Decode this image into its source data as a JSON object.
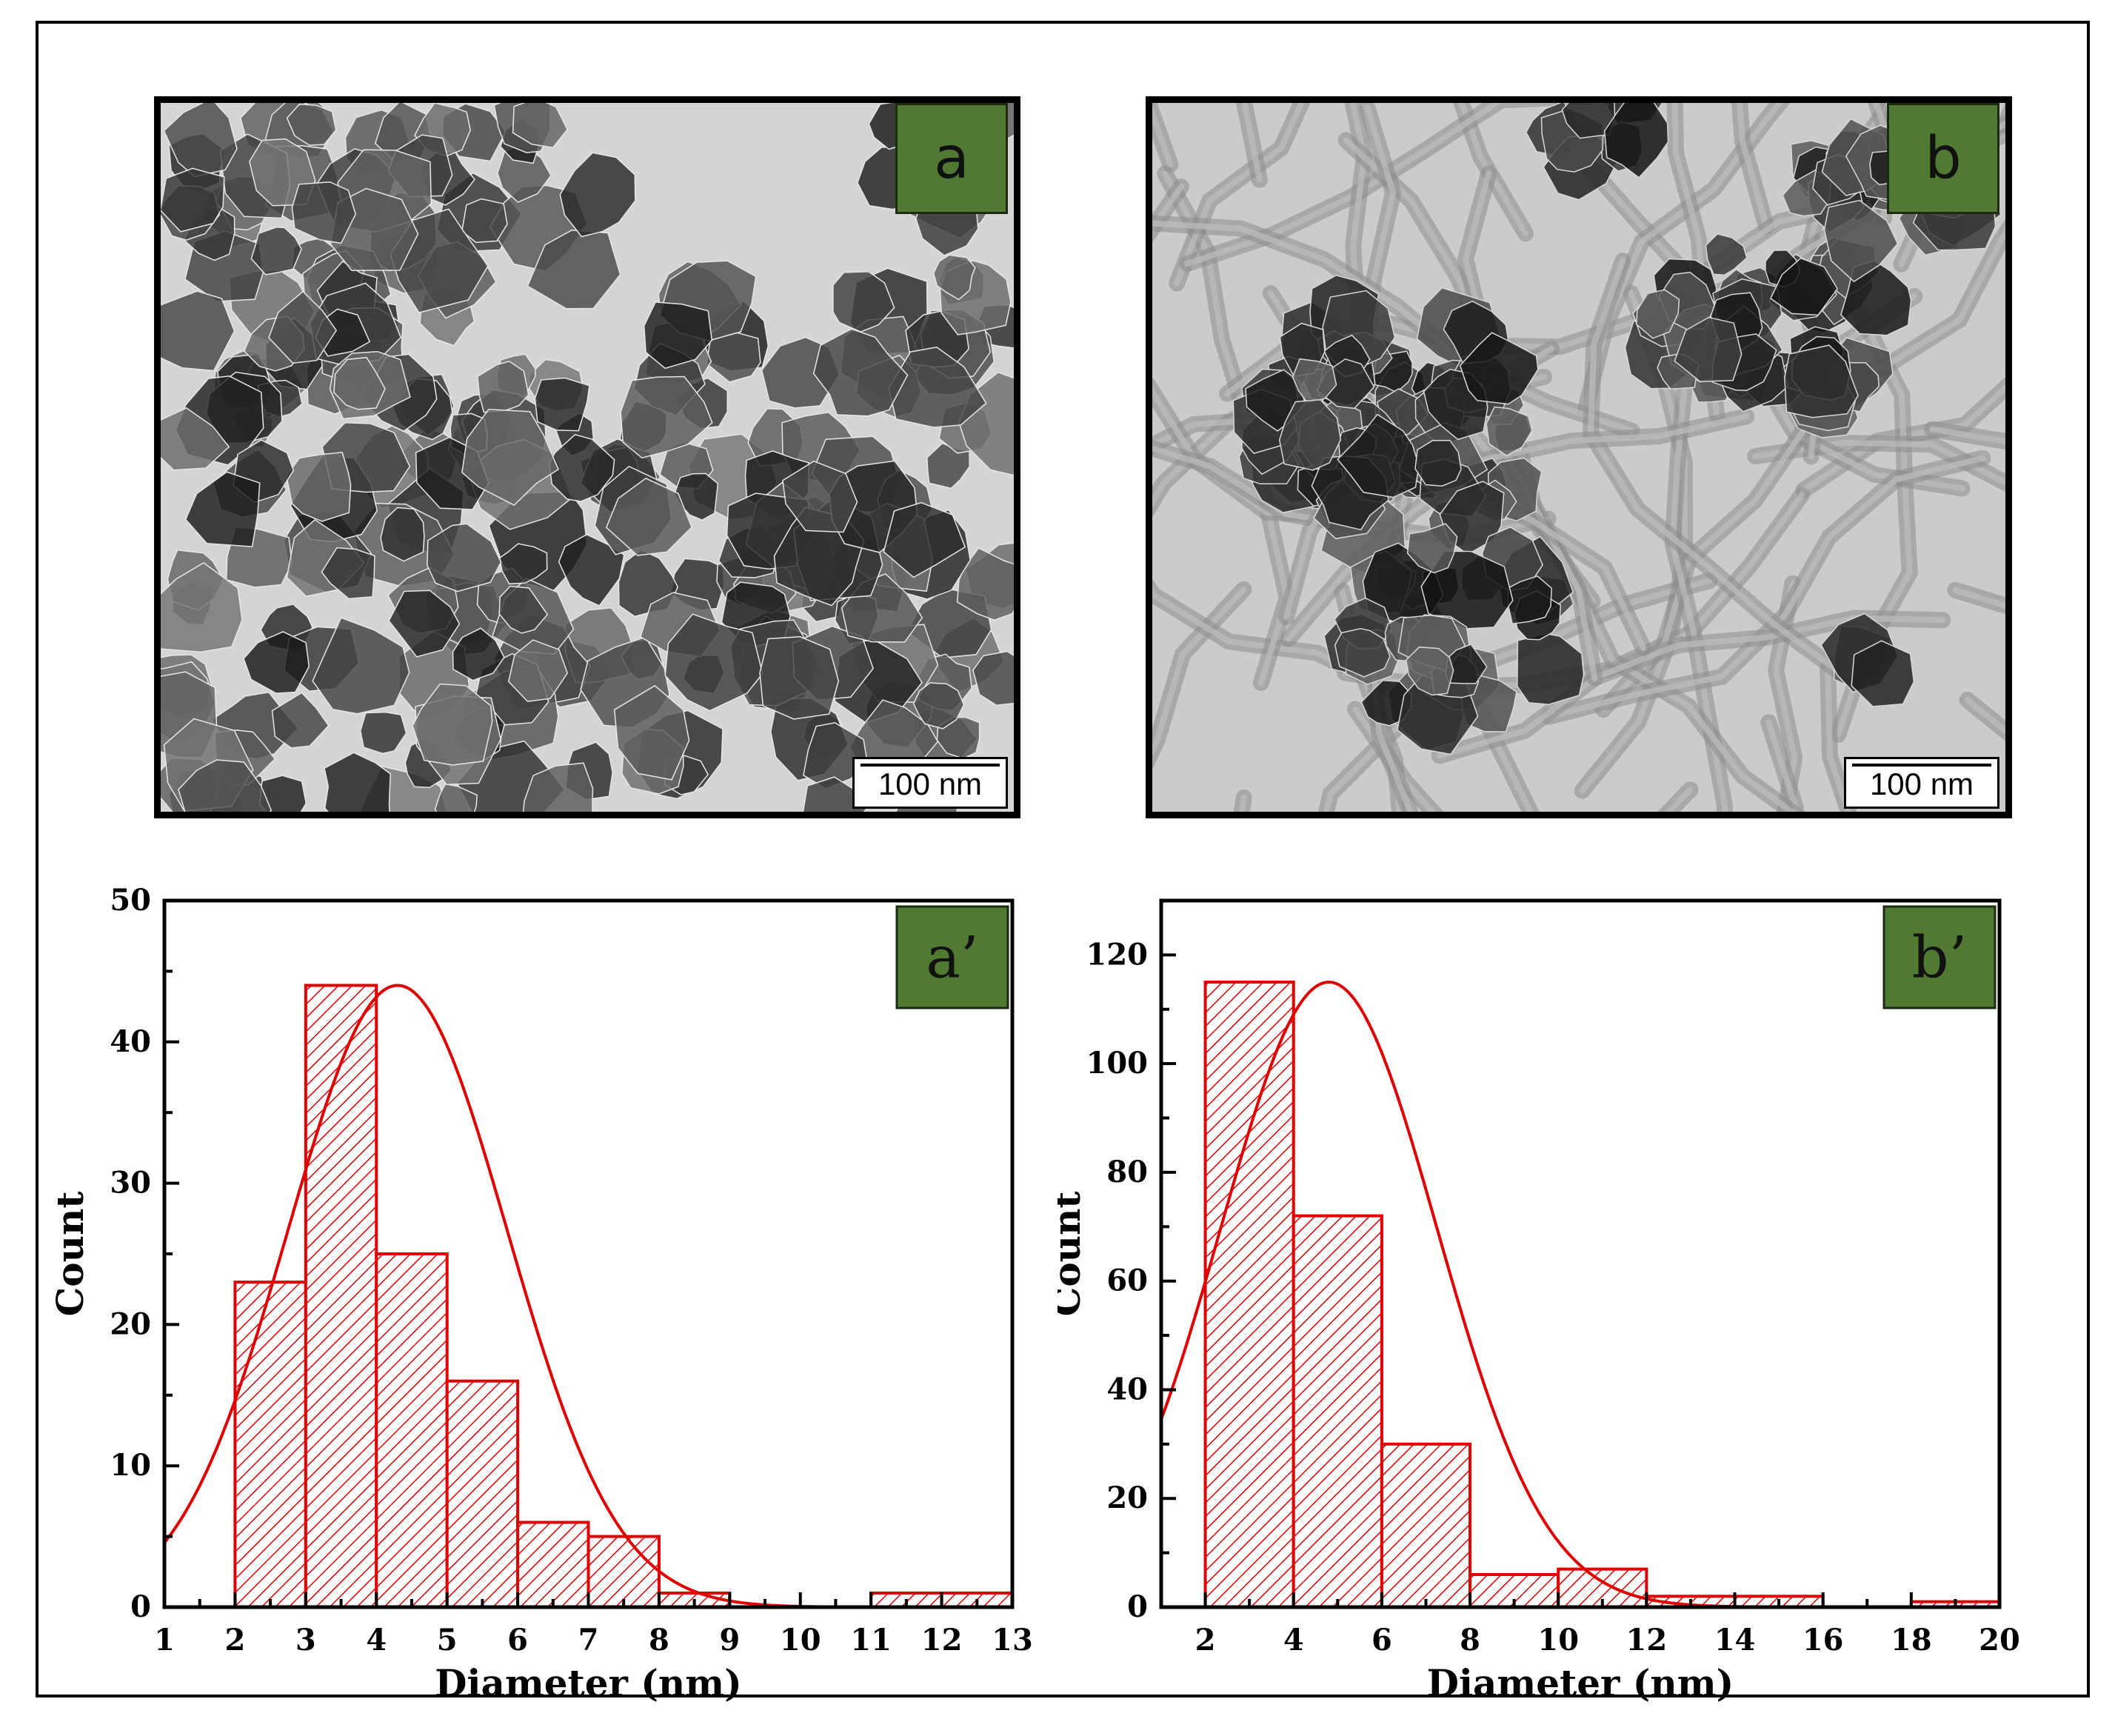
{
  "panels": {
    "a": {
      "label": "a",
      "scale_bar": "100 nm"
    },
    "b": {
      "label": "b",
      "scale_bar": "100 nm"
    }
  },
  "colors": {
    "label_bg": "#507a31",
    "histogram": "#e00000",
    "frame": "#000000"
  },
  "chart_data": [
    {
      "type": "bar",
      "subtype": "histogram-with-gaussian-fit",
      "panel_label": "a’",
      "xlabel": "Diameter (nm)",
      "ylabel": "Count",
      "xlim": [
        1,
        13
      ],
      "ylim": [
        0,
        50
      ],
      "xticks": [
        1,
        2,
        3,
        4,
        5,
        6,
        7,
        8,
        9,
        10,
        11,
        12,
        13
      ],
      "yticks": [
        0,
        10,
        20,
        30,
        40,
        50
      ],
      "bins": [
        [
          2,
          3
        ],
        [
          3,
          4
        ],
        [
          4,
          5
        ],
        [
          5,
          6
        ],
        [
          6,
          7
        ],
        [
          7,
          8
        ],
        [
          8,
          9
        ],
        [
          11,
          12
        ],
        [
          12,
          13
        ]
      ],
      "values": [
        23,
        44,
        25,
        16,
        6,
        5,
        1,
        1,
        1
      ],
      "fit": {
        "type": "gaussian",
        "peak": 44,
        "mean": 4.3,
        "sigma": 1.55
      },
      "bar_fill": "hatched",
      "grid": false
    },
    {
      "type": "bar",
      "subtype": "histogram-with-gaussian-fit",
      "panel_label": "b’",
      "xlabel": "Diameter (nm)",
      "ylabel": "Count",
      "xlim": [
        1,
        20
      ],
      "ylim": [
        0,
        130
      ],
      "xticks": [
        2,
        4,
        6,
        8,
        10,
        12,
        14,
        16,
        18,
        20
      ],
      "yticks": [
        0,
        20,
        40,
        60,
        80,
        100,
        120
      ],
      "bins": [
        [
          2,
          4
        ],
        [
          4,
          6
        ],
        [
          6,
          8
        ],
        [
          8,
          10
        ],
        [
          10,
          12
        ],
        [
          12,
          14
        ],
        [
          14,
          16
        ],
        [
          18,
          20
        ]
      ],
      "values": [
        115,
        72,
        30,
        6,
        7,
        2,
        2,
        1
      ],
      "fit": {
        "type": "gaussian",
        "peak": 115,
        "mean": 4.8,
        "sigma": 2.45
      },
      "bar_fill": "hatched",
      "grid": false
    }
  ]
}
